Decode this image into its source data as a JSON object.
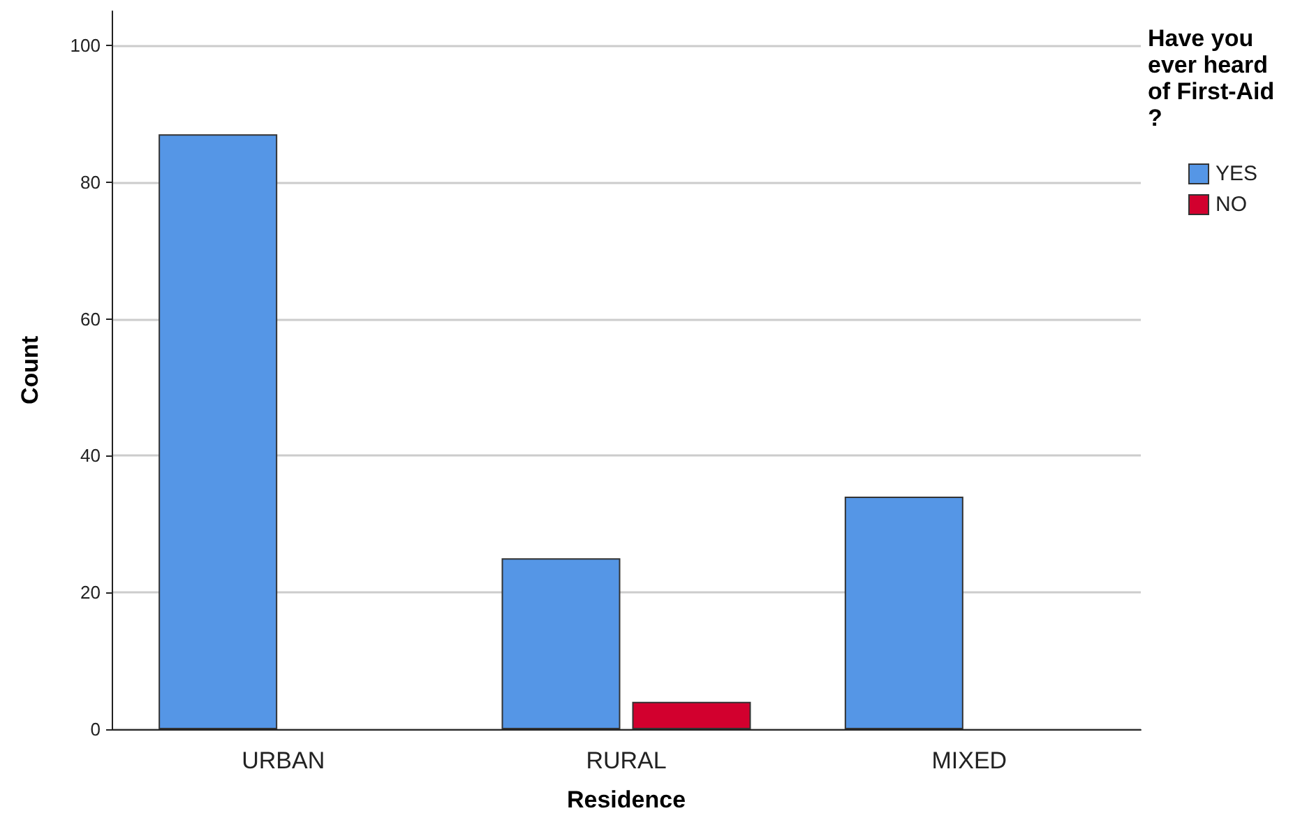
{
  "chart_data": {
    "type": "bar",
    "xlabel": "Residence",
    "ylabel": "Count",
    "legend_title": "Have you ever heard of First-Aid?",
    "categories": [
      "URBAN",
      "RURAL",
      "MIXED"
    ],
    "series": [
      {
        "name": "YES",
        "color": "#5596e6",
        "values": [
          87,
          25,
          34
        ]
      },
      {
        "name": "NO",
        "color": "#d2002e",
        "values": [
          null,
          4,
          null
        ]
      }
    ],
    "ylim": [
      0,
      105
    ],
    "yticks": [
      0,
      20,
      40,
      60,
      80,
      100
    ],
    "grid": "y",
    "legend": "top right"
  }
}
